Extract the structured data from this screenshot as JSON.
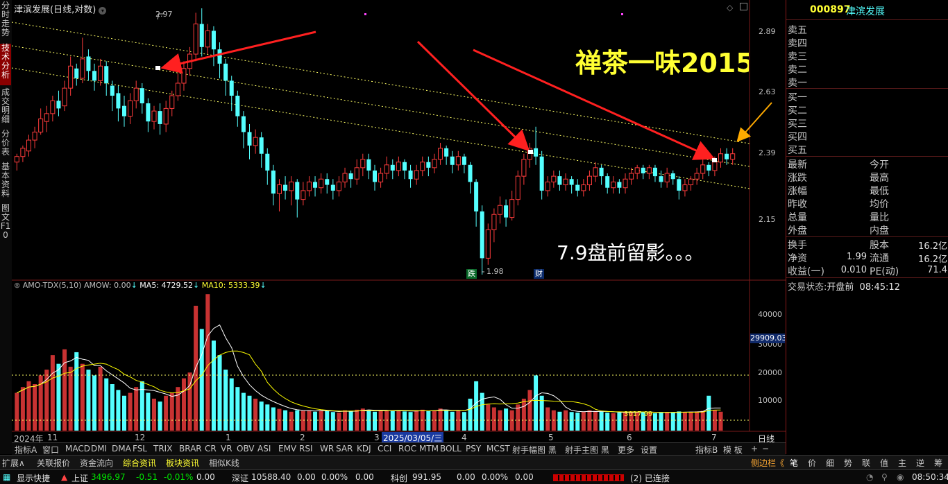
{
  "left_tabs": [
    {
      "label": "分时走势",
      "active": false
    },
    {
      "label": "技术分析",
      "active": true
    },
    {
      "label": "成交明细",
      "active": false
    },
    {
      "label": "分价表",
      "active": false
    },
    {
      "label": "基本资料",
      "active": false
    },
    {
      "label": "图文F10",
      "active": false
    }
  ],
  "chart": {
    "title": "津滨发展(日线,对数)",
    "price_axis": [
      "2.89",
      "2.63",
      "2.39",
      "2.15"
    ],
    "high_label": "2.97",
    "low_label": "1.98",
    "annotation_1": "禅茶一味2015",
    "annotation_2": "7.9盘前留影。。。",
    "badge_die": "跌",
    "badge_cai": "财",
    "volume_header": {
      "name": "AMO-TDX(5,10)",
      "amow": "AMOW: 0.00",
      "ma5": "MA5: 4729.52",
      "ma10": "MA10: 5333.39"
    },
    "volume_axis": [
      "40000",
      "30000",
      "20000",
      "10000"
    ],
    "volume_current": "29909.03",
    "vol_line_label": "3017.99",
    "date_labels": [
      "2024年",
      "11",
      "12",
      "1",
      "2",
      "3",
      "4",
      "5",
      "6",
      "7"
    ],
    "date_cursor": "2025/03/05/三",
    "period": "日线",
    "colors": {
      "up": "#ff3c3c",
      "down": "#54ffff",
      "ma5": "#ffffff",
      "ma10": "#ffff00",
      "arrow": "#ff2020",
      "arrow2": "#ffaa00"
    }
  },
  "chart_data": {
    "type": "candlestick",
    "candles": [
      [
        2.35,
        2.37,
        2.32,
        2.38
      ],
      [
        2.37,
        2.4,
        2.35,
        2.41
      ],
      [
        2.39,
        2.43,
        2.37,
        2.45
      ],
      [
        2.43,
        2.46,
        2.4,
        2.48
      ],
      [
        2.46,
        2.51,
        2.45,
        2.55
      ],
      [
        2.5,
        2.53,
        2.46,
        2.56
      ],
      [
        2.53,
        2.58,
        2.5,
        2.6
      ],
      [
        2.58,
        2.55,
        2.52,
        2.62
      ],
      [
        2.56,
        2.63,
        2.54,
        2.66
      ],
      [
        2.63,
        2.72,
        2.6,
        2.76
      ],
      [
        2.71,
        2.67,
        2.64,
        2.73
      ],
      [
        2.67,
        2.75,
        2.65,
        2.84
      ],
      [
        2.76,
        2.7,
        2.66,
        2.79
      ],
      [
        2.7,
        2.66,
        2.62,
        2.73
      ],
      [
        2.66,
        2.72,
        2.64,
        2.75
      ],
      [
        2.72,
        2.65,
        2.6,
        2.74
      ],
      [
        2.64,
        2.6,
        2.54,
        2.66
      ],
      [
        2.61,
        2.55,
        2.5,
        2.64
      ],
      [
        2.56,
        2.52,
        2.48,
        2.6
      ],
      [
        2.52,
        2.58,
        2.49,
        2.61
      ],
      [
        2.58,
        2.63,
        2.55,
        2.66
      ],
      [
        2.63,
        2.57,
        2.53,
        2.65
      ],
      [
        2.57,
        2.5,
        2.46,
        2.59
      ],
      [
        2.5,
        2.54,
        2.47,
        2.56
      ],
      [
        2.54,
        2.49,
        2.45,
        2.57
      ],
      [
        2.49,
        2.55,
        2.46,
        2.58
      ],
      [
        2.55,
        2.6,
        2.52,
        2.62
      ],
      [
        2.6,
        2.65,
        2.58,
        2.69
      ],
      [
        2.65,
        2.71,
        2.62,
        2.74
      ],
      [
        2.71,
        2.77,
        2.68,
        2.8
      ],
      [
        2.77,
        2.9,
        2.74,
        2.95
      ],
      [
        2.9,
        2.8,
        2.76,
        2.97
      ],
      [
        2.8,
        2.87,
        2.77,
        2.9
      ],
      [
        2.87,
        2.79,
        2.72,
        2.89
      ],
      [
        2.79,
        2.73,
        2.67,
        2.82
      ],
      [
        2.73,
        2.66,
        2.6,
        2.75
      ],
      [
        2.66,
        2.6,
        2.54,
        2.68
      ],
      [
        2.6,
        2.52,
        2.48,
        2.62
      ],
      [
        2.52,
        2.46,
        2.4,
        2.54
      ],
      [
        2.46,
        2.41,
        2.36,
        2.49
      ],
      [
        2.41,
        2.44,
        2.38,
        2.47
      ],
      [
        2.44,
        2.38,
        2.33,
        2.46
      ],
      [
        2.38,
        2.32,
        2.27,
        2.4
      ],
      [
        2.32,
        2.24,
        2.2,
        2.34
      ],
      [
        2.24,
        2.27,
        2.18,
        2.29
      ],
      [
        2.27,
        2.25,
        2.22,
        2.3
      ],
      [
        2.25,
        2.28,
        2.2,
        2.3
      ],
      [
        2.28,
        2.22,
        2.16,
        2.29
      ],
      [
        2.22,
        2.25,
        2.2,
        2.28
      ],
      [
        2.25,
        2.28,
        2.23,
        2.3
      ],
      [
        2.28,
        2.26,
        2.23,
        2.3
      ],
      [
        2.26,
        2.29,
        2.24,
        2.31
      ],
      [
        2.29,
        2.27,
        2.24,
        2.31
      ],
      [
        2.27,
        2.25,
        2.22,
        2.29
      ],
      [
        2.25,
        2.28,
        2.23,
        2.3
      ],
      [
        2.28,
        2.31,
        2.26,
        2.33
      ],
      [
        2.31,
        2.29,
        2.26,
        2.32
      ],
      [
        2.29,
        2.33,
        2.27,
        2.36
      ],
      [
        2.33,
        2.36,
        2.3,
        2.38
      ],
      [
        2.36,
        2.32,
        2.29,
        2.38
      ],
      [
        2.32,
        2.28,
        2.25,
        2.34
      ],
      [
        2.28,
        2.31,
        2.26,
        2.33
      ],
      [
        2.31,
        2.34,
        2.29,
        2.37
      ],
      [
        2.34,
        2.32,
        2.29,
        2.36
      ],
      [
        2.32,
        2.35,
        2.3,
        2.37
      ],
      [
        2.35,
        2.32,
        2.29,
        2.36
      ],
      [
        2.32,
        2.29,
        2.26,
        2.34
      ],
      [
        2.29,
        2.32,
        2.27,
        2.34
      ],
      [
        2.32,
        2.35,
        2.3,
        2.37
      ],
      [
        2.35,
        2.33,
        2.3,
        2.37
      ],
      [
        2.33,
        2.36,
        2.31,
        2.38
      ],
      [
        2.36,
        2.4,
        2.34,
        2.42
      ],
      [
        2.4,
        2.37,
        2.34,
        2.41
      ],
      [
        2.37,
        2.34,
        2.31,
        2.39
      ],
      [
        2.34,
        2.37,
        2.32,
        2.39
      ],
      [
        2.37,
        2.34,
        2.31,
        2.38
      ],
      [
        2.34,
        2.28,
        2.24,
        2.35
      ],
      [
        2.28,
        2.18,
        2.13,
        2.29
      ],
      [
        2.18,
        2.03,
        1.98,
        2.2
      ],
      [
        2.03,
        2.12,
        2.01,
        2.14
      ],
      [
        2.12,
        2.17,
        2.08,
        2.19
      ],
      [
        2.17,
        2.2,
        2.14,
        2.23
      ],
      [
        2.2,
        2.16,
        2.13,
        2.22
      ],
      [
        2.16,
        2.22,
        2.15,
        2.25
      ],
      [
        2.22,
        2.3,
        2.2,
        2.32
      ],
      [
        2.3,
        2.36,
        2.27,
        2.38
      ],
      [
        2.36,
        2.4,
        2.33,
        2.42
      ],
      [
        2.4,
        2.37,
        2.34,
        2.48
      ],
      [
        2.37,
        2.25,
        2.22,
        2.39
      ],
      [
        2.25,
        2.28,
        2.23,
        2.3
      ],
      [
        2.28,
        2.3,
        2.26,
        2.32
      ],
      [
        2.3,
        2.27,
        2.25,
        2.32
      ],
      [
        2.27,
        2.29,
        2.25,
        2.31
      ],
      [
        2.29,
        2.27,
        2.24,
        2.3
      ],
      [
        2.27,
        2.25,
        2.23,
        2.29
      ],
      [
        2.25,
        2.27,
        2.23,
        2.29
      ],
      [
        2.27,
        2.3,
        2.25,
        2.32
      ],
      [
        2.3,
        2.33,
        2.28,
        2.35
      ],
      [
        2.33,
        2.3,
        2.27,
        2.34
      ],
      [
        2.3,
        2.26,
        2.24,
        2.31
      ],
      [
        2.26,
        2.28,
        2.24,
        2.3
      ],
      [
        2.28,
        2.26,
        2.24,
        2.29
      ],
      [
        2.26,
        2.29,
        2.24,
        2.31
      ],
      [
        2.29,
        2.31,
        2.27,
        2.33
      ],
      [
        2.31,
        2.33,
        2.29,
        2.34
      ],
      [
        2.33,
        2.31,
        2.29,
        2.34
      ],
      [
        2.31,
        2.33,
        2.29,
        2.34
      ],
      [
        2.33,
        2.3,
        2.28,
        2.34
      ],
      [
        2.3,
        2.28,
        2.26,
        2.32
      ],
      [
        2.28,
        2.31,
        2.26,
        2.33
      ],
      [
        2.31,
        2.29,
        2.27,
        2.32
      ],
      [
        2.29,
        2.25,
        2.22,
        2.3
      ],
      [
        2.25,
        2.27,
        2.23,
        2.29
      ],
      [
        2.27,
        2.29,
        2.25,
        2.3
      ],
      [
        2.29,
        2.31,
        2.27,
        2.33
      ],
      [
        2.31,
        2.34,
        2.29,
        2.36
      ],
      [
        2.34,
        2.32,
        2.3,
        2.35
      ],
      [
        2.32,
        2.35,
        2.3,
        2.37
      ],
      [
        2.35,
        2.38,
        2.33,
        2.4
      ],
      [
        2.38,
        2.36,
        2.34,
        2.4
      ],
      [
        2.36,
        2.38,
        2.34,
        2.4
      ]
    ],
    "volumes": [
      1300,
      1500,
      1700,
      1600,
      1900,
      2100,
      2600,
      2300,
      2800,
      2200,
      2700,
      2300,
      2100,
      1900,
      2200,
      1800,
      1600,
      1400,
      1200,
      1300,
      1500,
      1700,
      1300,
      1100,
      1000,
      1200,
      1300,
      1500,
      1800,
      2000,
      4300,
      3500,
      4700,
      3100,
      2600,
      2100,
      1800,
      1500,
      1300,
      1200,
      1100,
      1000,
      900,
      800,
      750,
      700,
      650,
      700,
      680,
      700,
      650,
      700,
      680,
      640,
      620,
      700,
      680,
      720,
      760,
      700,
      650,
      680,
      700,
      680,
      700,
      660,
      640,
      700,
      720,
      680,
      700,
      760,
      700,
      650,
      680,
      640,
      1100,
      1700,
      1300,
      900,
      800,
      700,
      760,
      700,
      900,
      1100,
      1400,
      1900,
      1200,
      800,
      700,
      650,
      700,
      640,
      620,
      650,
      700,
      680,
      650,
      620,
      600,
      620,
      640,
      660,
      640,
      650,
      620,
      600,
      620,
      640,
      620,
      660,
      640,
      650,
      660,
      680,
      1200,
      700,
      650
    ],
    "ylim": [
      1.98,
      2.97
    ],
    "volume_ylim": [
      0,
      48000
    ]
  },
  "right_panel": {
    "code": "000897",
    "name": "津滨发展",
    "sell_rows": [
      "卖五",
      "卖四",
      "卖三",
      "卖二",
      "卖一"
    ],
    "buy_rows": [
      "买一",
      "买二",
      "买三",
      "买四",
      "买五"
    ],
    "quote_left": [
      "最新",
      "涨跌",
      "涨幅",
      "昨收",
      "总量",
      "外盘"
    ],
    "quote_right": [
      "今开",
      "最高",
      "最低",
      "均价",
      "量比",
      "内盘"
    ],
    "fin_rows": [
      {
        "l1": "换手",
        "v1": "",
        "l2": "股本",
        "v2": "16.2亿"
      },
      {
        "l1": "净资",
        "v1": "1.99",
        "l2": "流通",
        "v2": "16.2亿"
      },
      {
        "l1": "收益(一)",
        "v1": "0.010",
        "l2": "PE(动)",
        "v2": "71.4"
      }
    ],
    "trade_status_label": "交易状态:",
    "trade_status": "开盘前",
    "time": "08:45:12"
  },
  "indicator_tabs": [
    "指标A",
    "窗口",
    "MACD",
    "DMI",
    "DMA",
    "FSL",
    "TRIX",
    "BRAR",
    "CR",
    "VR",
    "OBV",
    "ASI",
    "EMV",
    "RSI",
    "WR",
    "SAR",
    "KDJ",
    "CCI",
    "ROC",
    "MTM",
    "BOLL",
    "PSY",
    "MCST",
    "射手幅图 黑",
    "射手主图 黑",
    "更多",
    "设置",
    "指标B",
    "模 板",
    "+",
    "−"
  ],
  "toolbar_tabs": [
    "扩展∧",
    "关联报价",
    "资金流向",
    "综合资讯",
    "板块资讯",
    "相似K线"
  ],
  "toolbar_right": [
    "侧边栏《",
    "笔",
    "价",
    "细",
    "势",
    "联",
    "值",
    "主",
    "逆",
    "筹"
  ],
  "status": {
    "show_shortcut": "显示快捷",
    "sh_label": "上证",
    "sh_value": "3496.97",
    "sh_change": "-0.51",
    "sh_pct": "-0.01%",
    "sh_amount": "0.00",
    "sz_label": "深证",
    "sz_value": "10588.40",
    "sz_change": "0.00",
    "sz_pct": "0.00%",
    "sz_amount": "0.00",
    "kc_label": "科创",
    "kc_value": "991.95",
    "kc_change": "0.00",
    "kc_pct": "0.00%",
    "kc_amount": "0.00",
    "conn": "(2) 已连接",
    "clock": "08:50:34"
  }
}
